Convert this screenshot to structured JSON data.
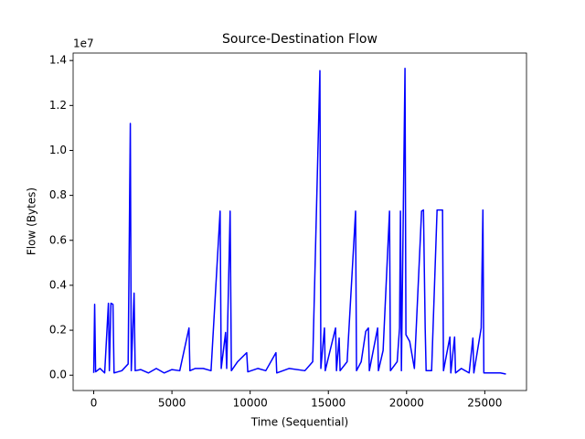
{
  "chart_data": {
    "type": "line",
    "title": "Source-Destination Flow",
    "x_label": "Time (Sequential)",
    "y_label": "Flow (Bytes)",
    "y_offset_label": "1e7",
    "x": [
      0,
      60,
      120,
      400,
      700,
      940,
      1000,
      1100,
      1230,
      1300,
      1800,
      2200,
      2340,
      2400,
      2580,
      2650,
      3000,
      3500,
      4000,
      4500,
      5000,
      5500,
      6090,
      6150,
      6500,
      7000,
      7500,
      8080,
      8150,
      8430,
      8500,
      8720,
      8800,
      9200,
      9780,
      9850,
      10500,
      11000,
      11650,
      11700,
      12500,
      13500,
      14000,
      14460,
      14520,
      14750,
      14800,
      15460,
      15520,
      15690,
      15750,
      16200,
      16740,
      16800,
      17100,
      17390,
      17560,
      17620,
      18150,
      18200,
      18500,
      18910,
      18970,
      19400,
      19550,
      19610,
      19670,
      19900,
      19960,
      20200,
      20500,
      20960,
      21080,
      21190,
      21250,
      21600,
      21950,
      22100,
      22300,
      22360,
      22770,
      22830,
      23070,
      23130,
      23500,
      24000,
      24240,
      24300,
      24770,
      24880,
      24940,
      25500,
      26000,
      26350
    ],
    "series": [
      {
        "color": "#0000ff",
        "values": [
          100000,
          3150000,
          150000,
          300000,
          100000,
          3200000,
          200000,
          3200000,
          3150000,
          100000,
          200000,
          500000,
          11200000,
          200000,
          3650000,
          200000,
          250000,
          100000,
          300000,
          100000,
          250000,
          200000,
          2100000,
          200000,
          300000,
          300000,
          200000,
          7300000,
          300000,
          1900000,
          300000,
          7300000,
          200000,
          600000,
          1000000,
          150000,
          300000,
          200000,
          1000000,
          100000,
          300000,
          200000,
          600000,
          13550000,
          300000,
          2100000,
          200000,
          2100000,
          200000,
          1650000,
          200000,
          600000,
          7300000,
          200000,
          600000,
          1950000,
          2100000,
          200000,
          2100000,
          200000,
          1100000,
          7300000,
          200000,
          600000,
          2100000,
          7300000,
          200000,
          13650000,
          1800000,
          1500000,
          300000,
          7300000,
          7350000,
          2100000,
          200000,
          200000,
          7350000,
          7350000,
          7350000,
          200000,
          1700000,
          100000,
          1700000,
          100000,
          300000,
          100000,
          1650000,
          100000,
          2100000,
          7350000,
          100000,
          100000,
          100000,
          50000
        ]
      }
    ],
    "xlim": [
      -1317,
      27667
    ],
    "xticks": [
      0,
      5000,
      10000,
      15000,
      20000,
      25000
    ],
    "ylim": [
      -682500,
      14332500
    ],
    "yticks": [
      {
        "value": 0,
        "label": "0.0"
      },
      {
        "value": 2000000,
        "label": "0.2"
      },
      {
        "value": 4000000,
        "label": "0.4"
      },
      {
        "value": 6000000,
        "label": "0.6"
      },
      {
        "value": 8000000,
        "label": "0.8"
      },
      {
        "value": 10000000,
        "label": "1.0"
      },
      {
        "value": 12000000,
        "label": "1.2"
      },
      {
        "value": 14000000,
        "label": "1.4"
      }
    ],
    "grid": false
  }
}
